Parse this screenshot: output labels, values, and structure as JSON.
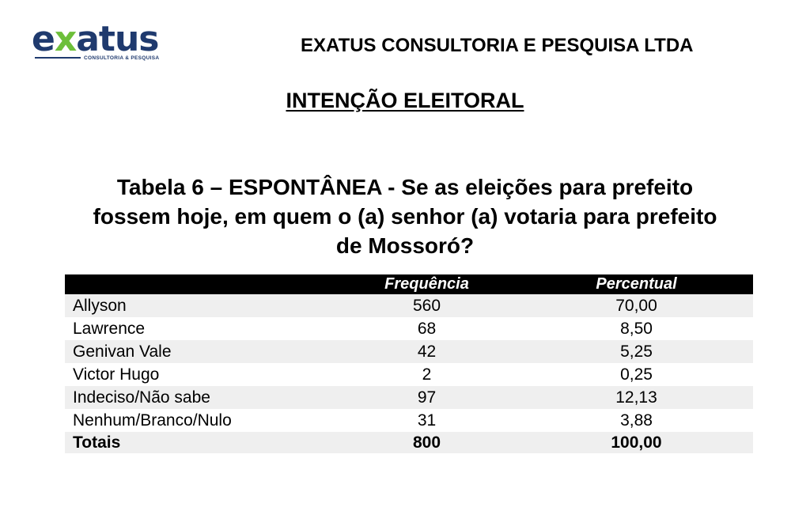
{
  "header": {
    "logo_main_left": "e",
    "logo_main_x": "x",
    "logo_main_right": "atus",
    "logo_subtitle": "CONSULTORIA & PESQUISA",
    "company_name": "EXATUS CONSULTORIA E PESQUISA LTDA"
  },
  "section_title": "INTENÇÃO ELEITORAL",
  "table_title": {
    "line1": "Tabela 6 – ESPONTÂNEA - Se as eleições para prefeito",
    "line2": "fossem hoje, em quem o (a) senhor (a) votaria para prefeito",
    "line3": "de Mossoró?"
  },
  "table": {
    "columns": [
      "",
      "Frequência",
      "Percentual"
    ],
    "rows": [
      {
        "label": "Allyson",
        "freq": "560",
        "pct": "70,00"
      },
      {
        "label": "Lawrence",
        "freq": "68",
        "pct": "8,50"
      },
      {
        "label": "Genivan Vale",
        "freq": "42",
        "pct": "5,25"
      },
      {
        "label": "Victor Hugo",
        "freq": "2",
        "pct": "0,25"
      },
      {
        "label": "Indeciso/Não sabe",
        "freq": "97",
        "pct": "12,13"
      },
      {
        "label": "Nenhum/Branco/Nulo",
        "freq": "31",
        "pct": "3,88"
      }
    ],
    "total": {
      "label": "Totais",
      "freq": "800",
      "pct": "100,00"
    }
  },
  "colors": {
    "logo_blue": "#1f3a6e",
    "logo_green": "#6dbf3a",
    "header_bg": "#000000",
    "row_shade": "#efefef"
  }
}
